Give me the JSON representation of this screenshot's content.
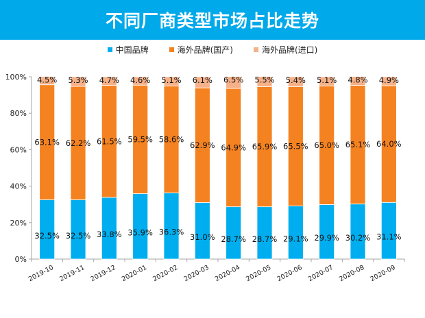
{
  "title": "不同厂商类型市场占比走势",
  "colors": {
    "header_bg": "#00a9e9",
    "domestic": "#00aeef",
    "foreign_local": "#f58220",
    "foreign_import": "#f6b189"
  },
  "chart_data": {
    "type": "bar",
    "stacked": true,
    "title": "",
    "xlabel": "",
    "ylabel": "",
    "ylim": [
      0,
      100
    ],
    "y_ticks": [
      "0%",
      "20%",
      "40%",
      "60%",
      "80%",
      "100%"
    ],
    "grid": false,
    "legend_position": "top",
    "categories": [
      "2019-10",
      "2019-11",
      "2019-12",
      "2020-01",
      "2020-02",
      "2020-03",
      "2020-04",
      "2020-05",
      "2020-06",
      "2020-07",
      "2020-08",
      "2020-09"
    ],
    "series": [
      {
        "name": "中国品牌",
        "values": [
          32.5,
          32.5,
          33.8,
          35.9,
          36.3,
          31.0,
          28.7,
          28.7,
          29.1,
          29.9,
          30.2,
          31.1
        ],
        "labels": [
          "32.5%",
          "32.5%",
          "33.8%",
          "35.9%",
          "36.3%",
          "31.0%",
          "28.7%",
          "28.7%",
          "29.1%",
          "29.9%",
          "30.2%",
          "31.1%"
        ]
      },
      {
        "name": "海外品牌(国产)",
        "values": [
          63.1,
          62.2,
          61.5,
          59.5,
          58.6,
          62.9,
          64.9,
          65.9,
          65.5,
          65.0,
          65.1,
          64.0
        ],
        "labels": [
          "63.1%",
          "62.2%",
          "61.5%",
          "59.5%",
          "58.6%",
          "62.9%",
          "64.9%",
          "65.9%",
          "65.5%",
          "65.0%",
          "65.1%",
          "64.0%"
        ]
      },
      {
        "name": "海外品牌(进口)",
        "values": [
          4.5,
          5.3,
          4.7,
          4.6,
          5.1,
          6.1,
          6.5,
          5.5,
          5.4,
          5.1,
          4.8,
          4.9
        ],
        "labels": [
          "4.5%",
          "5.3%",
          "4.7%",
          "4.6%",
          "5.1%",
          "6.1%",
          "6.5%",
          "5.5%",
          "5.4%",
          "5.1%",
          "4.8%",
          "4.9%"
        ]
      }
    ]
  }
}
